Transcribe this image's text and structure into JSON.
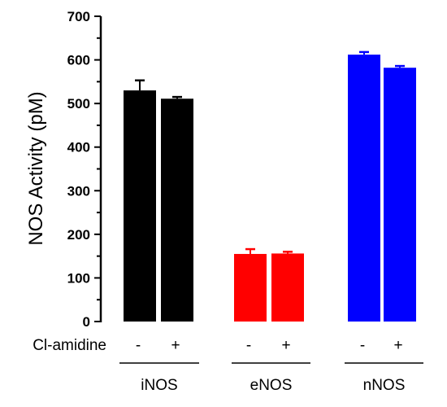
{
  "chart_data": {
    "type": "bar",
    "title": "",
    "ylabel": "NOS Activity (pM)",
    "ylim": [
      0,
      700
    ],
    "yticks": [
      0,
      100,
      200,
      300,
      400,
      500,
      600,
      700
    ],
    "treatment_label": "Cl-amidine",
    "groups": [
      {
        "name": "iNOS",
        "color": "#000000",
        "bars": [
          {
            "treatment": "-",
            "value": 530,
            "error": 23
          },
          {
            "treatment": "+",
            "value": 511,
            "error": 4
          }
        ]
      },
      {
        "name": "eNOS",
        "color": "#ff0000",
        "bars": [
          {
            "treatment": "-",
            "value": 155,
            "error": 11
          },
          {
            "treatment": "+",
            "value": 156,
            "error": 4
          }
        ]
      },
      {
        "name": "nNOS",
        "color": "#0000ff",
        "bars": [
          {
            "treatment": "-",
            "value": 612,
            "error": 6
          },
          {
            "treatment": "+",
            "value": 582,
            "error": 4
          }
        ]
      }
    ]
  }
}
